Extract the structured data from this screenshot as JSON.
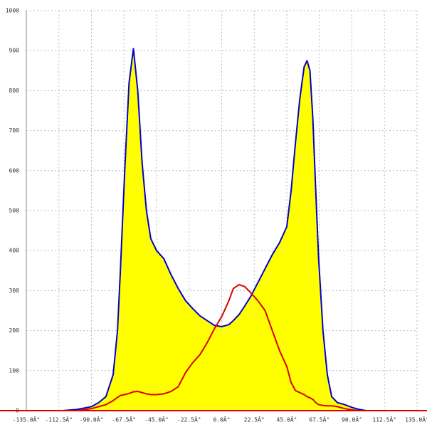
{
  "chart_data": {
    "type": "area",
    "x": [
      -135,
      -110,
      -100,
      -90,
      -85,
      -80,
      -75,
      -72,
      -70,
      -67,
      -64,
      -61,
      -58,
      -55,
      -52,
      -49,
      -45,
      -40,
      -35,
      -30,
      -25,
      -20,
      -15,
      -10,
      -5,
      0,
      5,
      8,
      12,
      16,
      20,
      25,
      30,
      35,
      40,
      45,
      48,
      51,
      54,
      57,
      59,
      61,
      63,
      65,
      67,
      70,
      73,
      76,
      80,
      85,
      90,
      95,
      100,
      135
    ],
    "series": [
      {
        "color": "#0000cc",
        "fill": "#ffff00",
        "values": [
          0,
          0,
          3,
          10,
          20,
          35,
          90,
          200,
          350,
          600,
          820,
          905,
          800,
          620,
          500,
          430,
          400,
          380,
          340,
          305,
          275,
          255,
          237,
          225,
          213,
          210,
          215,
          225,
          240,
          262,
          285,
          320,
          355,
          390,
          420,
          460,
          550,
          670,
          780,
          860,
          875,
          850,
          730,
          550,
          380,
          200,
          90,
          35,
          20,
          15,
          8,
          3,
          0,
          0
        ]
      },
      {
        "color": "#dd0000",
        "values": [
          0,
          0,
          0,
          5,
          10,
          15,
          25,
          33,
          38,
          40,
          43,
          47,
          48,
          45,
          42,
          40,
          40,
          42,
          48,
          60,
          95,
          120,
          140,
          170,
          205,
          235,
          275,
          305,
          315,
          310,
          295,
          275,
          250,
          200,
          150,
          110,
          70,
          50,
          45,
          40,
          35,
          32,
          28,
          20,
          15,
          13,
          12,
          12,
          10,
          5,
          2,
          0,
          0,
          0
        ]
      }
    ],
    "xlim": [
      -135,
      135
    ],
    "xticks": [
      {
        "value": -135,
        "label": "-135.0Â°"
      },
      {
        "value": -112.5,
        "label": "-112.5Â°"
      },
      {
        "value": -90,
        "label": "-90.0Â°"
      },
      {
        "value": -67.5,
        "label": "-67.5Â°"
      },
      {
        "value": -45,
        "label": "-45.0Â°"
      },
      {
        "value": -22.5,
        "label": "-22.5Â°"
      },
      {
        "value": 0,
        "label": "0.0Â°"
      },
      {
        "value": 22.5,
        "label": "22.5Â°"
      },
      {
        "value": 45,
        "label": "45.0Â°"
      },
      {
        "value": 67.5,
        "label": "67.5Â°"
      },
      {
        "value": 90,
        "label": "90.0Â°"
      },
      {
        "value": 112.5,
        "label": "112.5Â°"
      },
      {
        "value": 135,
        "label": "135.0Â°"
      }
    ],
    "ylim": [
      0,
      1000
    ],
    "yticks": [
      0,
      100,
      200,
      300,
      400,
      500,
      600,
      700,
      800,
      900,
      1000
    ],
    "grid": true
  }
}
